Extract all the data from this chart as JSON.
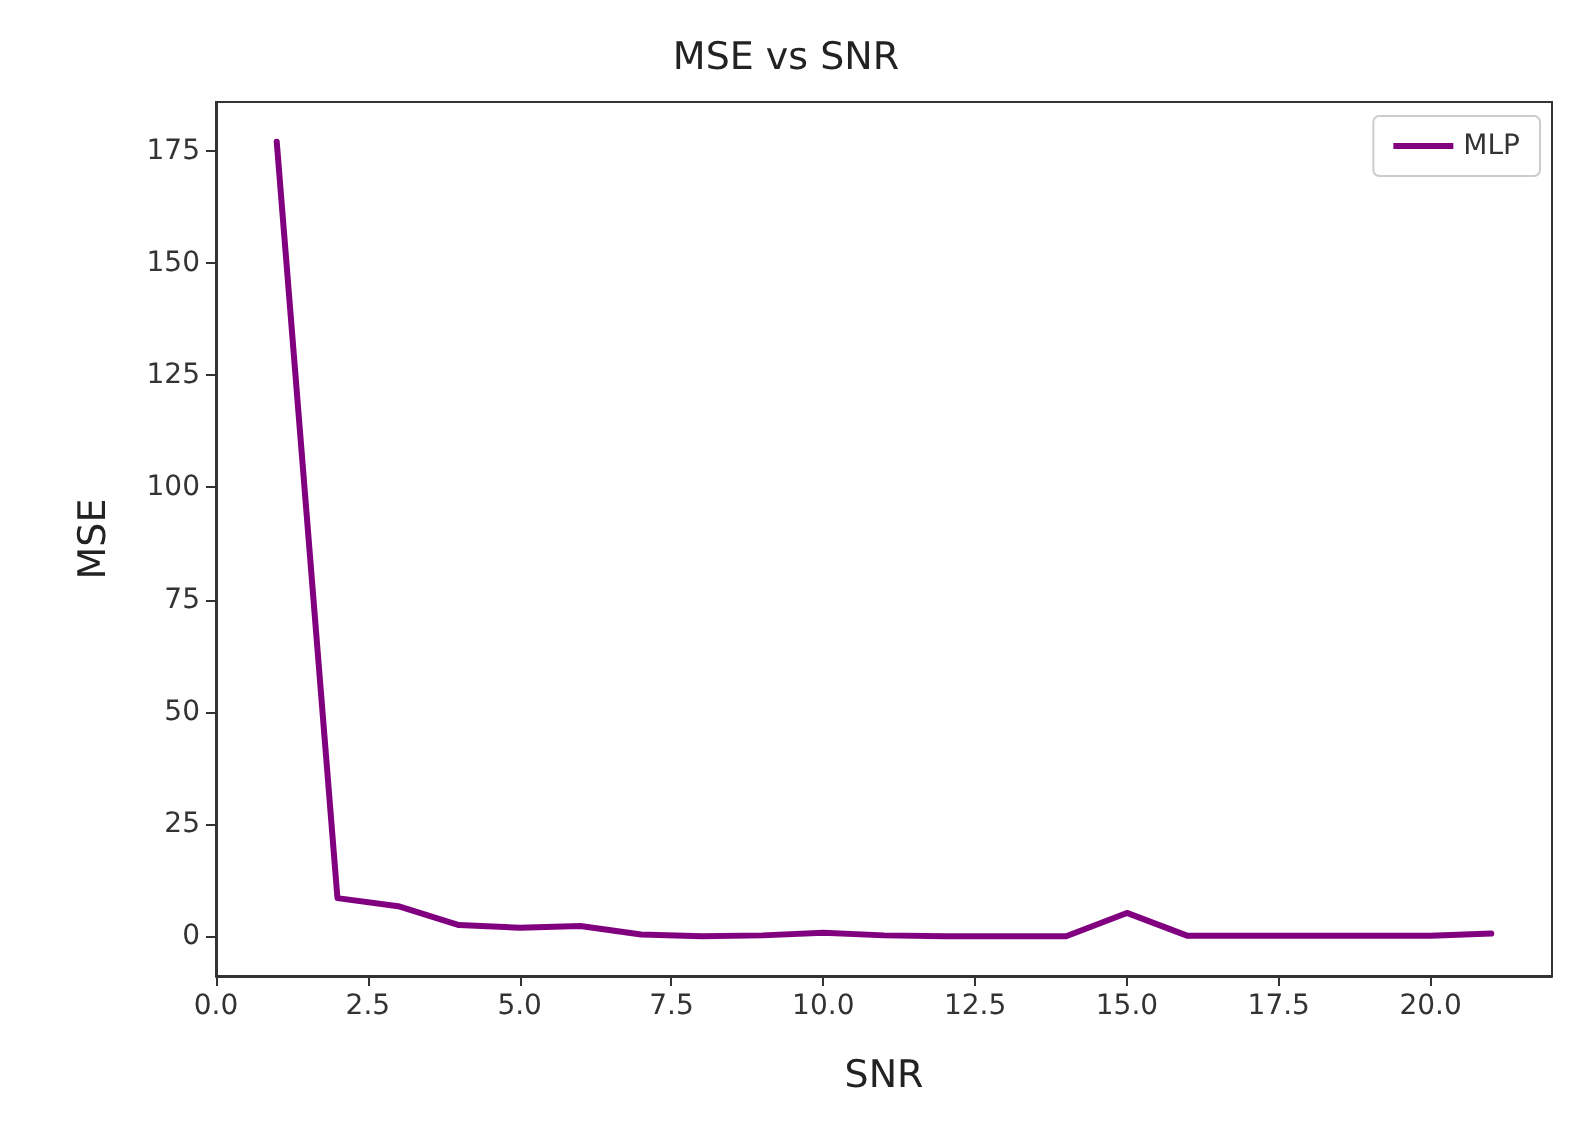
{
  "chart_data": {
    "type": "line",
    "title": "MSE vs SNR",
    "xlabel": "SNR",
    "ylabel": "MSE",
    "x": [
      1,
      2,
      3,
      4,
      5,
      6,
      7,
      8,
      9,
      10,
      11,
      12,
      13,
      14,
      15,
      16,
      17,
      18,
      19,
      20,
      21
    ],
    "series": [
      {
        "name": "MLP",
        "color": "#800080",
        "values": [
          177,
          8.5,
          6.7,
          2.5,
          1.9,
          2.3,
          0.4,
          0,
          0.2,
          0.8,
          0.2,
          0,
          0,
          0,
          5.2,
          0.1,
          0.1,
          0.1,
          0.1,
          0.1,
          0.6
        ]
      }
    ],
    "xlim": [
      0,
      22
    ],
    "ylim": [
      -8.85,
      185.85
    ],
    "xticks": [
      {
        "value": 0,
        "label": "0.0"
      },
      {
        "value": 2.5,
        "label": "2.5"
      },
      {
        "value": 5,
        "label": "5.0"
      },
      {
        "value": 7.5,
        "label": "7.5"
      },
      {
        "value": 10,
        "label": "10.0"
      },
      {
        "value": 12.5,
        "label": "12.5"
      },
      {
        "value": 15,
        "label": "15.0"
      },
      {
        "value": 17.5,
        "label": "17.5"
      },
      {
        "value": 20,
        "label": "20.0"
      }
    ],
    "yticks": [
      0,
      25,
      50,
      75,
      100,
      125,
      150,
      175
    ],
    "grid": false,
    "legend": "top right",
    "marker": "none",
    "line_style": "solid"
  }
}
